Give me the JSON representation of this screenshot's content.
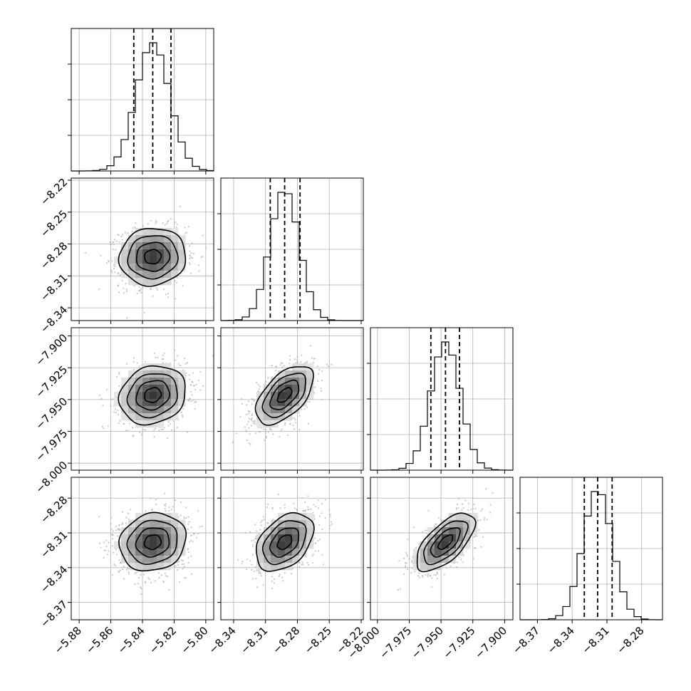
{
  "chart_data": {
    "type": "corner",
    "grid": true,
    "colors": {
      "line": "#000000",
      "grid": "#b0b0b0",
      "scatter": "#b4b4b4",
      "background": "#ffffff"
    },
    "parameters": [
      {
        "index": 0,
        "range": [
          -5.885,
          -5.795
        ],
        "ticks": [
          -5.88,
          -5.86,
          -5.84,
          -5.82,
          -5.8
        ],
        "tick_labels": [
          "−5.88",
          "−5.86",
          "−5.84",
          "−5.82",
          "−5.80"
        ],
        "mean": -5.8335,
        "sd": 0.0105,
        "quantiles": [
          -5.8455,
          -5.8335,
          -5.822
        ]
      },
      {
        "index": 1,
        "range": [
          -8.352,
          -8.218
        ],
        "ticks": [
          -8.34,
          -8.31,
          -8.28,
          -8.25,
          -8.22
        ],
        "tick_labels": [
          "−8.34",
          "−8.31",
          "−8.28",
          "−8.25",
          "−8.22"
        ],
        "mean": -8.292,
        "sd": 0.0135,
        "quantiles": [
          -8.3055,
          -8.292,
          -8.2775
        ]
      },
      {
        "index": 2,
        "range": [
          -8.0055,
          -7.8935
        ],
        "ticks": [
          -8.0,
          -7.975,
          -7.95,
          -7.925,
          -7.9
        ],
        "tick_labels": [
          "−8.000",
          "−7.975",
          "−7.950",
          "−7.925",
          "−7.900"
        ],
        "mean": -7.9465,
        "sd": 0.0115,
        "quantiles": [
          -7.958,
          -7.9465,
          -7.9355
        ]
      },
      {
        "index": 3,
        "range": [
          -8.385,
          -8.262
        ],
        "ticks": [
          -8.37,
          -8.34,
          -8.31,
          -8.28
        ],
        "tick_labels": [
          "−8.37",
          "−8.34",
          "−8.31",
          "−8.28"
        ],
        "mean": -8.318,
        "sd": 0.0125,
        "quantiles": [
          -8.3295,
          -8.318,
          -8.3055
        ]
      }
    ],
    "correlations": [
      {
        "pair": [
          0,
          1
        ],
        "rho": 0.05
      },
      {
        "pair": [
          0,
          2
        ],
        "rho": 0.15
      },
      {
        "pair": [
          1,
          2
        ],
        "rho": 0.55
      },
      {
        "pair": [
          0,
          3
        ],
        "rho": 0.12
      },
      {
        "pair": [
          1,
          3
        ],
        "rho": 0.4
      },
      {
        "pair": [
          2,
          3
        ],
        "rho": 0.65
      }
    ],
    "histogram_bins": 20,
    "contour_levels_sigma": [
      0.5,
      1.0,
      1.5,
      2.0
    ]
  }
}
